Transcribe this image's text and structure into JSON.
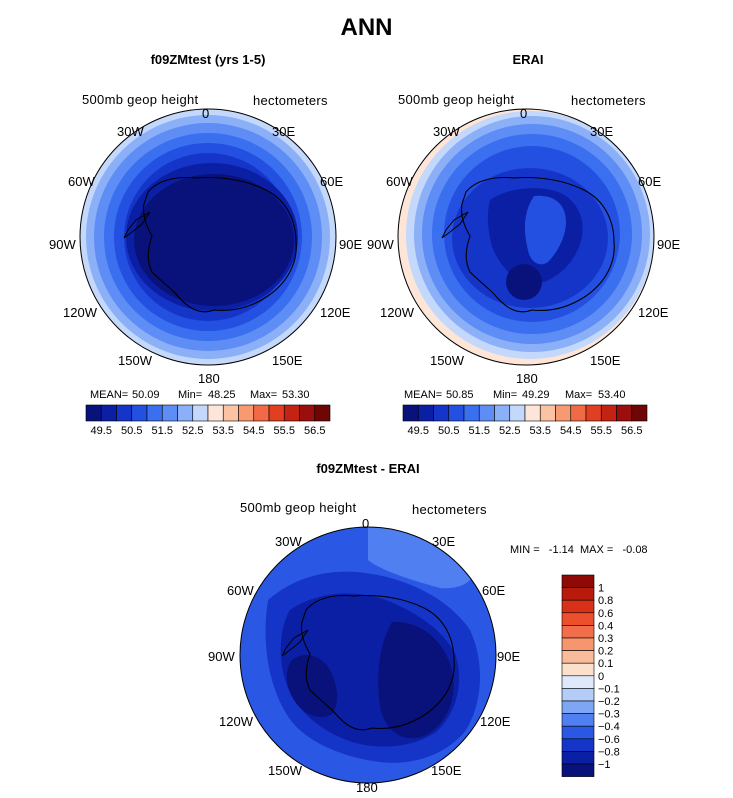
{
  "figure": {
    "title": "ANN",
    "panels": [
      {
        "title": "f09ZMtest (yrs 1-5)",
        "variable_label": "500mb geop height",
        "units_label": "hectometers",
        "stats": {
          "mean_label": "MEAN=",
          "mean": "50.09",
          "min_label": "Min=",
          "min": "48.25",
          "max_label": "Max=",
          "max": "53.30"
        }
      },
      {
        "title": "ERAI",
        "variable_label": "500mb geop height",
        "units_label": "hectometers",
        "stats": {
          "mean_label": "MEAN=",
          "mean": "50.85",
          "min_label": "Min=",
          "min": "49.29",
          "max_label": "Max=",
          "max": "53.40"
        }
      },
      {
        "title": "f09ZMtest - ERAI",
        "variable_label": "500mb geop height",
        "units_label": "hectometers",
        "stats": {
          "minmax_text": "MIN =   -1.14  MAX =   -0.08"
        }
      }
    ],
    "longitude_labels": {
      "top": "0",
      "top_right": "30E",
      "right_upper": "60E",
      "right": "90E",
      "right_lower": "120E",
      "bottom_right": "150E",
      "bottom": "180",
      "bottom_left": "150W",
      "left_lower": "120W",
      "left": "90W",
      "left_upper": "60W",
      "top_left": "30W"
    },
    "colorbar_field": {
      "tick_labels": [
        "49.5",
        "50.5",
        "51.5",
        "52.5",
        "53.5",
        "54.5",
        "55.5",
        "56.5"
      ],
      "colors": [
        "#08127a",
        "#0b1fa5",
        "#1535c9",
        "#2350e0",
        "#3a6ff0",
        "#5e8df5",
        "#8bb0f8",
        "#c4d8fb",
        "#fde5d8",
        "#fbc3a4",
        "#f79a72",
        "#f06a45",
        "#e23e22",
        "#c42212",
        "#9a0f0b",
        "#6e0606"
      ]
    },
    "colorbar_diff": {
      "tick_labels": [
        "1",
        "0.8",
        "0.6",
        "0.4",
        "0.3",
        "0.2",
        "0.1",
        "0",
        "−0.1",
        "−0.2",
        "−0.3",
        "−0.4",
        "−0.6",
        "−0.8",
        "−1"
      ],
      "colors": [
        "#8f0a06",
        "#b81a0c",
        "#d93018",
        "#ec4f2c",
        "#f26e4b",
        "#f5966f",
        "#f8bc9b",
        "#fbe0cc",
        "#dfe9fb",
        "#b3ccf8",
        "#7fa6f4",
        "#4f7ff0",
        "#2a58e4",
        "#1535c9",
        "#0b1fa5",
        "#08127a"
      ]
    }
  }
}
